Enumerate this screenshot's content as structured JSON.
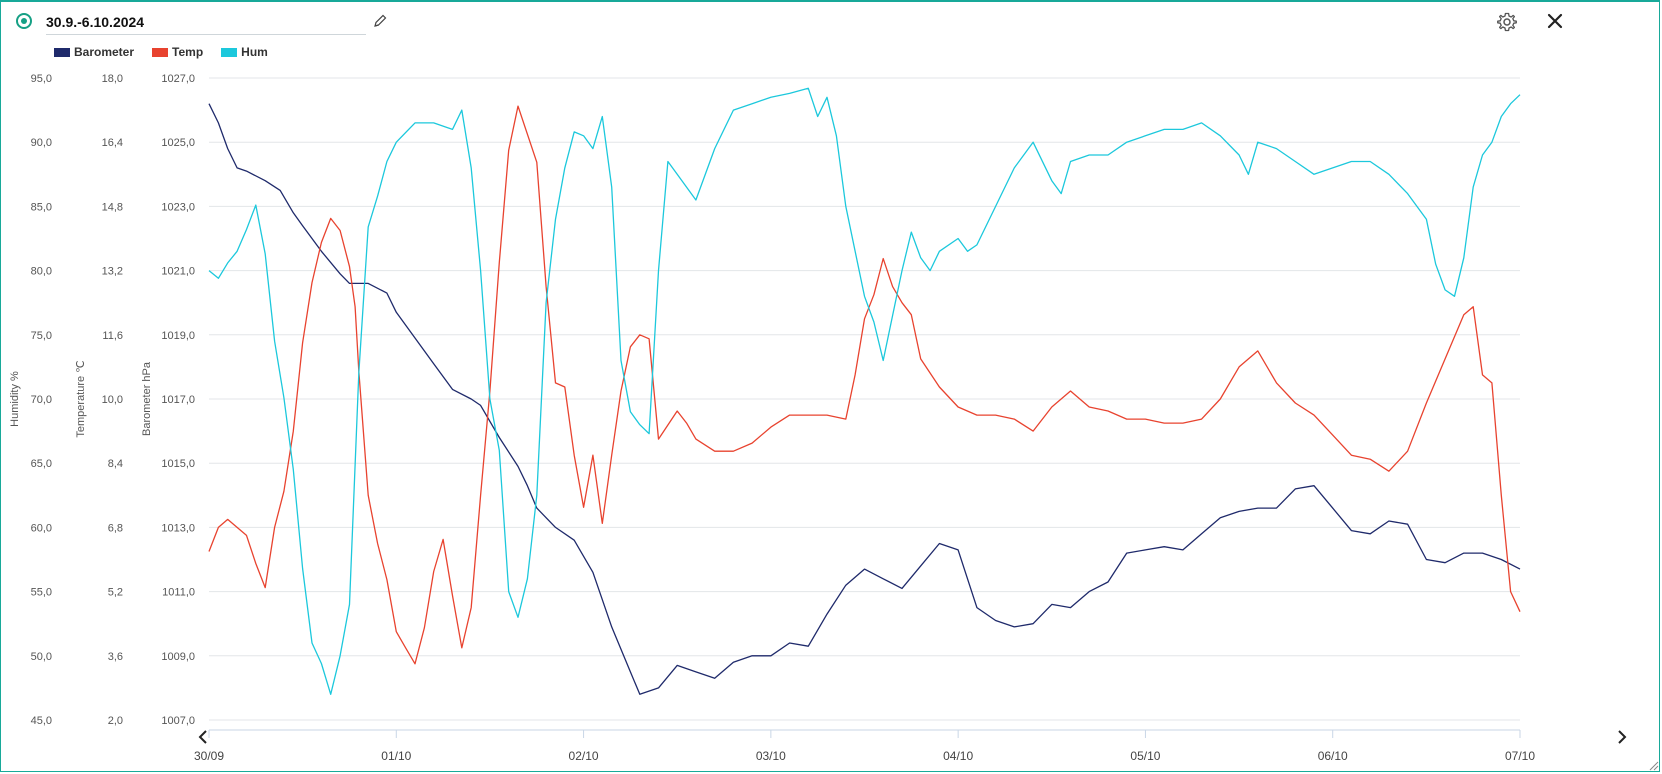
{
  "header": {
    "title_value": "30.9.-6.10.2024",
    "icons": [
      "live-indicator-icon",
      "pencil-icon",
      "gear-icon",
      "close-icon"
    ]
  },
  "legend": [
    {
      "name": "Barometer",
      "color": "#1f2a6b"
    },
    {
      "name": "Temp",
      "color": "#e8432f"
    },
    {
      "name": "Hum",
      "color": "#1cc8dc"
    }
  ],
  "navigation": {
    "icons": [
      "chevron-left-icon",
      "chevron-right-icon"
    ]
  },
  "chart_data": {
    "type": "line",
    "x_ticks": [
      "30/09",
      "01/10",
      "02/10",
      "03/10",
      "04/10",
      "05/10",
      "06/10",
      "07/10"
    ],
    "axes": [
      {
        "id": "humidity",
        "label": "Humidity %",
        "ticks": [
          "95,0",
          "90,0",
          "85,0",
          "80,0",
          "75,0",
          "70,0",
          "65,0",
          "60,0",
          "55,0",
          "50,0",
          "45,0"
        ],
        "ylim": [
          45,
          95
        ]
      },
      {
        "id": "temperature",
        "label": "Temperature ℃",
        "ticks": [
          "18,0",
          "16,4",
          "14,8",
          "13,2",
          "11,6",
          "10,0",
          "8,4",
          "6,8",
          "5,2",
          "3,6",
          "2,0"
        ],
        "ylim": [
          2,
          18
        ]
      },
      {
        "id": "barometer",
        "label": "Barometer hPa",
        "ticks": [
          "1027,0",
          "1025,0",
          "1023,0",
          "1021,0",
          "1019,0",
          "1017,0",
          "1015,0",
          "1013,0",
          "1011,0",
          "1009,0",
          "1007,0"
        ],
        "ylim": [
          1007,
          1027
        ]
      }
    ],
    "grid": true,
    "series": [
      {
        "name": "Barometer",
        "axis": "barometer",
        "color": "#1f2a6b",
        "points": [
          [
            0,
            1026.2
          ],
          [
            0.05,
            1025.6
          ],
          [
            0.1,
            1024.8
          ],
          [
            0.15,
            1024.2
          ],
          [
            0.2,
            1024.1
          ],
          [
            0.3,
            1023.8
          ],
          [
            0.38,
            1023.5
          ],
          [
            0.45,
            1022.8
          ],
          [
            0.5,
            1022.4
          ],
          [
            0.6,
            1021.6
          ],
          [
            0.7,
            1020.9
          ],
          [
            0.75,
            1020.6
          ],
          [
            0.85,
            1020.6
          ],
          [
            0.95,
            1020.3
          ],
          [
            1.0,
            1019.7
          ],
          [
            1.1,
            1018.9
          ],
          [
            1.2,
            1018.1
          ],
          [
            1.3,
            1017.3
          ],
          [
            1.4,
            1017.0
          ],
          [
            1.45,
            1016.8
          ],
          [
            1.55,
            1015.8
          ],
          [
            1.65,
            1014.9
          ],
          [
            1.7,
            1014.3
          ],
          [
            1.75,
            1013.6
          ],
          [
            1.85,
            1013.0
          ],
          [
            1.95,
            1012.6
          ],
          [
            2.05,
            1011.6
          ],
          [
            2.15,
            1009.9
          ],
          [
            2.25,
            1008.5
          ],
          [
            2.3,
            1007.8
          ],
          [
            2.4,
            1008.0
          ],
          [
            2.5,
            1008.7
          ],
          [
            2.6,
            1008.5
          ],
          [
            2.7,
            1008.3
          ],
          [
            2.8,
            1008.8
          ],
          [
            2.9,
            1009.0
          ],
          [
            3.0,
            1009.0
          ],
          [
            3.1,
            1009.4
          ],
          [
            3.2,
            1009.3
          ],
          [
            3.3,
            1010.3
          ],
          [
            3.4,
            1011.2
          ],
          [
            3.5,
            1011.7
          ],
          [
            3.6,
            1011.4
          ],
          [
            3.7,
            1011.1
          ],
          [
            3.8,
            1011.8
          ],
          [
            3.9,
            1012.5
          ],
          [
            4.0,
            1012.3
          ],
          [
            4.1,
            1010.5
          ],
          [
            4.2,
            1010.1
          ],
          [
            4.3,
            1009.9
          ],
          [
            4.4,
            1010.0
          ],
          [
            4.5,
            1010.6
          ],
          [
            4.6,
            1010.5
          ],
          [
            4.7,
            1011.0
          ],
          [
            4.8,
            1011.3
          ],
          [
            4.9,
            1012.2
          ],
          [
            5.0,
            1012.3
          ],
          [
            5.1,
            1012.4
          ],
          [
            5.2,
            1012.3
          ],
          [
            5.3,
            1012.8
          ],
          [
            5.4,
            1013.3
          ],
          [
            5.5,
            1013.5
          ],
          [
            5.6,
            1013.6
          ],
          [
            5.7,
            1013.6
          ],
          [
            5.8,
            1014.2
          ],
          [
            5.9,
            1014.3
          ],
          [
            6.0,
            1013.6
          ],
          [
            6.1,
            1012.9
          ],
          [
            6.2,
            1012.8
          ],
          [
            6.3,
            1013.2
          ],
          [
            6.4,
            1013.1
          ],
          [
            6.5,
            1012.0
          ],
          [
            6.6,
            1011.9
          ],
          [
            6.7,
            1012.2
          ],
          [
            6.8,
            1012.2
          ],
          [
            6.9,
            1012.0
          ],
          [
            7.0,
            1011.7
          ]
        ]
      },
      {
        "name": "Temp",
        "axis": "temperature",
        "color": "#e8432f",
        "points": [
          [
            0,
            6.2
          ],
          [
            0.05,
            6.8
          ],
          [
            0.1,
            7.0
          ],
          [
            0.15,
            6.8
          ],
          [
            0.2,
            6.6
          ],
          [
            0.25,
            5.9
          ],
          [
            0.3,
            5.3
          ],
          [
            0.35,
            6.8
          ],
          [
            0.4,
            7.7
          ],
          [
            0.45,
            9.2
          ],
          [
            0.5,
            11.4
          ],
          [
            0.55,
            12.9
          ],
          [
            0.6,
            13.9
          ],
          [
            0.65,
            14.5
          ],
          [
            0.7,
            14.2
          ],
          [
            0.75,
            13.3
          ],
          [
            0.78,
            12.3
          ],
          [
            0.8,
            10.7
          ],
          [
            0.85,
            7.6
          ],
          [
            0.9,
            6.4
          ],
          [
            0.95,
            5.5
          ],
          [
            1.0,
            4.2
          ],
          [
            1.05,
            3.8
          ],
          [
            1.1,
            3.4
          ],
          [
            1.15,
            4.3
          ],
          [
            1.2,
            5.7
          ],
          [
            1.25,
            6.5
          ],
          [
            1.3,
            5.1
          ],
          [
            1.35,
            3.8
          ],
          [
            1.4,
            4.8
          ],
          [
            1.45,
            7.6
          ],
          [
            1.5,
            10.2
          ],
          [
            1.55,
            13.4
          ],
          [
            1.6,
            16.2
          ],
          [
            1.65,
            17.3
          ],
          [
            1.7,
            16.6
          ],
          [
            1.75,
            15.9
          ],
          [
            1.8,
            12.8
          ],
          [
            1.85,
            10.4
          ],
          [
            1.9,
            10.3
          ],
          [
            1.95,
            8.6
          ],
          [
            2.0,
            7.3
          ],
          [
            2.05,
            8.6
          ],
          [
            2.1,
            6.9
          ],
          [
            2.15,
            8.6
          ],
          [
            2.2,
            10.2
          ],
          [
            2.25,
            11.3
          ],
          [
            2.3,
            11.6
          ],
          [
            2.35,
            11.5
          ],
          [
            2.4,
            9.0
          ],
          [
            2.5,
            9.7
          ],
          [
            2.55,
            9.4
          ],
          [
            2.6,
            9.0
          ],
          [
            2.7,
            8.7
          ],
          [
            2.8,
            8.7
          ],
          [
            2.9,
            8.9
          ],
          [
            3.0,
            9.3
          ],
          [
            3.1,
            9.6
          ],
          [
            3.2,
            9.6
          ],
          [
            3.3,
            9.6
          ],
          [
            3.4,
            9.5
          ],
          [
            3.45,
            10.6
          ],
          [
            3.5,
            12.0
          ],
          [
            3.55,
            12.6
          ],
          [
            3.6,
            13.5
          ],
          [
            3.65,
            12.8
          ],
          [
            3.7,
            12.4
          ],
          [
            3.75,
            12.1
          ],
          [
            3.8,
            11.0
          ],
          [
            3.9,
            10.3
          ],
          [
            4.0,
            9.8
          ],
          [
            4.1,
            9.6
          ],
          [
            4.2,
            9.6
          ],
          [
            4.3,
            9.5
          ],
          [
            4.4,
            9.2
          ],
          [
            4.5,
            9.8
          ],
          [
            4.6,
            10.2
          ],
          [
            4.7,
            9.8
          ],
          [
            4.8,
            9.7
          ],
          [
            4.9,
            9.5
          ],
          [
            5.0,
            9.5
          ],
          [
            5.1,
            9.4
          ],
          [
            5.2,
            9.4
          ],
          [
            5.3,
            9.5
          ],
          [
            5.4,
            10.0
          ],
          [
            5.5,
            10.8
          ],
          [
            5.6,
            11.2
          ],
          [
            5.7,
            10.4
          ],
          [
            5.8,
            9.9
          ],
          [
            5.9,
            9.6
          ],
          [
            6.0,
            9.1
          ],
          [
            6.1,
            8.6
          ],
          [
            6.2,
            8.5
          ],
          [
            6.3,
            8.2
          ],
          [
            6.4,
            8.7
          ],
          [
            6.5,
            9.9
          ],
          [
            6.6,
            11.0
          ],
          [
            6.7,
            12.1
          ],
          [
            6.75,
            12.3
          ],
          [
            6.8,
            10.6
          ],
          [
            6.85,
            10.4
          ],
          [
            6.9,
            7.6
          ],
          [
            6.95,
            5.2
          ],
          [
            7.0,
            4.7
          ]
        ]
      },
      {
        "name": "Hum",
        "axis": "humidity",
        "color": "#1cc8dc",
        "points": [
          [
            0,
            80.0
          ],
          [
            0.05,
            79.4
          ],
          [
            0.1,
            80.6
          ],
          [
            0.15,
            81.5
          ],
          [
            0.2,
            83.2
          ],
          [
            0.25,
            85.1
          ],
          [
            0.3,
            81.3
          ],
          [
            0.35,
            74.5
          ],
          [
            0.4,
            70.1
          ],
          [
            0.45,
            64.5
          ],
          [
            0.5,
            56.8
          ],
          [
            0.55,
            51.0
          ],
          [
            0.6,
            49.4
          ],
          [
            0.65,
            47.0
          ],
          [
            0.7,
            50.0
          ],
          [
            0.75,
            54.0
          ],
          [
            0.8,
            72.0
          ],
          [
            0.85,
            83.4
          ],
          [
            0.9,
            85.8
          ],
          [
            0.95,
            88.5
          ],
          [
            1.0,
            90.0
          ],
          [
            1.1,
            91.5
          ],
          [
            1.2,
            91.5
          ],
          [
            1.3,
            91.0
          ],
          [
            1.35,
            92.5
          ],
          [
            1.4,
            88.0
          ],
          [
            1.45,
            80.0
          ],
          [
            1.5,
            70.0
          ],
          [
            1.55,
            66.0
          ],
          [
            1.6,
            55.0
          ],
          [
            1.65,
            53.0
          ],
          [
            1.7,
            56.0
          ],
          [
            1.75,
            62.5
          ],
          [
            1.8,
            77.5
          ],
          [
            1.85,
            84.0
          ],
          [
            1.9,
            88.0
          ],
          [
            1.95,
            90.8
          ],
          [
            2.0,
            90.5
          ],
          [
            2.05,
            89.5
          ],
          [
            2.1,
            92.0
          ],
          [
            2.15,
            86.5
          ],
          [
            2.2,
            73.0
          ],
          [
            2.25,
            69.0
          ],
          [
            2.3,
            68.0
          ],
          [
            2.35,
            67.3
          ],
          [
            2.4,
            80.0
          ],
          [
            2.45,
            88.5
          ],
          [
            2.5,
            87.5
          ],
          [
            2.6,
            85.5
          ],
          [
            2.7,
            89.5
          ],
          [
            2.8,
            92.5
          ],
          [
            2.9,
            93.0
          ],
          [
            3.0,
            93.5
          ],
          [
            3.1,
            93.8
          ],
          [
            3.2,
            94.2
          ],
          [
            3.25,
            92.0
          ],
          [
            3.3,
            93.5
          ],
          [
            3.35,
            90.5
          ],
          [
            3.4,
            85.0
          ],
          [
            3.5,
            78.0
          ],
          [
            3.55,
            76.0
          ],
          [
            3.6,
            73.0
          ],
          [
            3.65,
            76.5
          ],
          [
            3.7,
            80.0
          ],
          [
            3.75,
            83.0
          ],
          [
            3.8,
            81.0
          ],
          [
            3.85,
            80.0
          ],
          [
            3.9,
            81.5
          ],
          [
            4.0,
            82.5
          ],
          [
            4.05,
            81.5
          ],
          [
            4.1,
            82.0
          ],
          [
            4.2,
            85.0
          ],
          [
            4.3,
            88.0
          ],
          [
            4.4,
            90.0
          ],
          [
            4.5,
            87.0
          ],
          [
            4.55,
            86.0
          ],
          [
            4.6,
            88.5
          ],
          [
            4.7,
            89.0
          ],
          [
            4.8,
            89.0
          ],
          [
            4.9,
            90.0
          ],
          [
            5.0,
            90.5
          ],
          [
            5.1,
            91.0
          ],
          [
            5.2,
            91.0
          ],
          [
            5.3,
            91.5
          ],
          [
            5.4,
            90.5
          ],
          [
            5.5,
            89.0
          ],
          [
            5.55,
            87.5
          ],
          [
            5.6,
            90.0
          ],
          [
            5.7,
            89.5
          ],
          [
            5.8,
            88.5
          ],
          [
            5.9,
            87.5
          ],
          [
            6.0,
            88.0
          ],
          [
            6.1,
            88.5
          ],
          [
            6.2,
            88.5
          ],
          [
            6.3,
            87.5
          ],
          [
            6.4,
            86.0
          ],
          [
            6.5,
            84.0
          ],
          [
            6.55,
            80.5
          ],
          [
            6.6,
            78.5
          ],
          [
            6.65,
            78.0
          ],
          [
            6.7,
            81.0
          ],
          [
            6.75,
            86.5
          ],
          [
            6.8,
            89.0
          ],
          [
            6.85,
            90.0
          ],
          [
            6.9,
            92.0
          ],
          [
            6.95,
            93.0
          ],
          [
            7.0,
            93.7
          ]
        ]
      }
    ]
  }
}
